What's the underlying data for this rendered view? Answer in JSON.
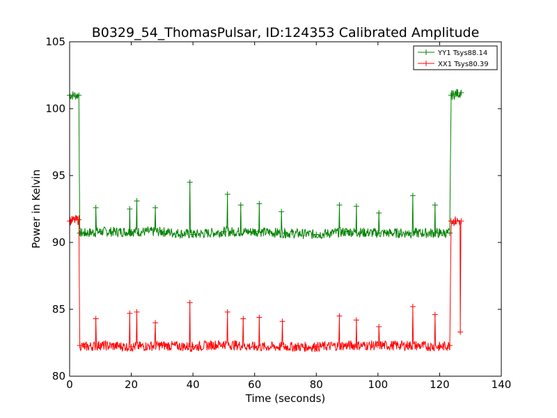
{
  "chart_data": {
    "type": "line",
    "title": "B0329_54_ThomasPulsar, ID:124353 Calibrated Amplitude",
    "xlabel": "Time (seconds)",
    "ylabel": "Power in Kelvin",
    "xlim": [
      0,
      140
    ],
    "ylim": [
      80,
      105
    ],
    "x_ticks": [
      "0",
      "20",
      "40",
      "60",
      "80",
      "100",
      "120",
      "140"
    ],
    "y_ticks": [
      "80",
      "85",
      "90",
      "95",
      "100",
      "105"
    ],
    "grid": false,
    "legend_position": "top-right",
    "marker": "+",
    "series": [
      {
        "name": "YY1 Tsys88.14",
        "color": "#008000",
        "x": [
          0,
          3.0,
          3.3,
          5,
          10,
          20,
          30,
          40,
          50,
          60,
          70,
          80,
          90,
          100,
          110,
          120,
          123.3,
          123.7,
          125,
          127
        ],
        "y": [
          101.0,
          101.0,
          90.7,
          90.7,
          90.8,
          90.8,
          90.8,
          90.6,
          90.8,
          90.8,
          90.7,
          90.6,
          90.8,
          90.7,
          90.7,
          90.7,
          90.7,
          101.0,
          101.1,
          101.2
        ],
        "spikes": [
          {
            "x": 8.5,
            "y": 92.6
          },
          {
            "x": 19.5,
            "y": 92.5
          },
          {
            "x": 21.8,
            "y": 93.1
          },
          {
            "x": 27.8,
            "y": 92.6
          },
          {
            "x": 39.0,
            "y": 94.5
          },
          {
            "x": 51.2,
            "y": 93.6
          },
          {
            "x": 55.5,
            "y": 92.8
          },
          {
            "x": 61.5,
            "y": 92.9
          },
          {
            "x": 68.7,
            "y": 92.3
          },
          {
            "x": 87.5,
            "y": 92.8
          },
          {
            "x": 93.0,
            "y": 92.7
          },
          {
            "x": 100.3,
            "y": 92.2
          },
          {
            "x": 111.3,
            "y": 93.5
          },
          {
            "x": 118.5,
            "y": 92.8
          }
        ]
      },
      {
        "name": "XX1 Tsys80.39",
        "color": "#ff0000",
        "x": [
          0,
          3.0,
          3.3,
          5,
          10,
          20,
          30,
          40,
          50,
          60,
          70,
          80,
          90,
          100,
          110,
          120,
          123.3,
          123.7,
          125,
          127
        ],
        "y": [
          91.6,
          91.7,
          82.3,
          82.2,
          82.3,
          82.2,
          82.3,
          82.2,
          82.4,
          82.2,
          82.2,
          82.2,
          82.3,
          82.3,
          82.3,
          82.2,
          82.3,
          91.6,
          91.6,
          91.6
        ],
        "spikes": [
          {
            "x": 8.5,
            "y": 84.3
          },
          {
            "x": 19.5,
            "y": 84.7
          },
          {
            "x": 21.8,
            "y": 84.8
          },
          {
            "x": 27.8,
            "y": 84.0
          },
          {
            "x": 39.0,
            "y": 85.5
          },
          {
            "x": 51.2,
            "y": 84.8
          },
          {
            "x": 56.3,
            "y": 84.3
          },
          {
            "x": 61.5,
            "y": 84.4
          },
          {
            "x": 69.0,
            "y": 84.1
          },
          {
            "x": 87.5,
            "y": 84.5
          },
          {
            "x": 93.0,
            "y": 84.2
          },
          {
            "x": 100.3,
            "y": 83.7
          },
          {
            "x": 111.3,
            "y": 85.2
          },
          {
            "x": 118.5,
            "y": 84.6
          },
          {
            "x": 126.7,
            "y": 83.3
          }
        ]
      }
    ]
  }
}
